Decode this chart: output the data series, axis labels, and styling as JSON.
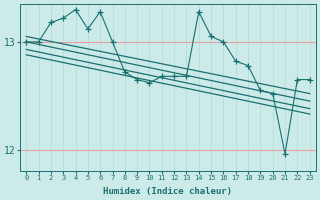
{
  "xlabel": "Humidex (Indice chaleur)",
  "x_ticks": [
    0,
    1,
    2,
    3,
    4,
    5,
    6,
    7,
    8,
    9,
    10,
    11,
    12,
    13,
    14,
    15,
    16,
    17,
    18,
    19,
    20,
    21,
    22,
    23
  ],
  "xlim": [
    -0.5,
    23.5
  ],
  "ylim": [
    11.8,
    13.35
  ],
  "yticks": [
    12,
    13
  ],
  "bg_color": "#cceae8",
  "line_color": "#1a7070",
  "grid_color": "#b8dedd",
  "hgrid_color": "#e8a0a0",
  "main_data_x": [
    0,
    1,
    2,
    3,
    4,
    5,
    6,
    7,
    8,
    9,
    10,
    11,
    12,
    13,
    14,
    15,
    16,
    17,
    18,
    19,
    20,
    21,
    22,
    23
  ],
  "main_data_y": [
    13.0,
    13.0,
    13.18,
    13.22,
    13.3,
    13.12,
    13.28,
    13.0,
    12.72,
    12.65,
    12.62,
    12.68,
    12.68,
    12.68,
    13.28,
    13.05,
    13.0,
    12.82,
    12.78,
    12.55,
    12.52,
    11.96,
    12.65,
    12.65
  ],
  "reg_lines": [
    {
      "x": [
        0,
        23
      ],
      "y": [
        13.05,
        12.52
      ]
    },
    {
      "x": [
        0,
        23
      ],
      "y": [
        13.0,
        12.45
      ]
    },
    {
      "x": [
        0,
        23
      ],
      "y": [
        12.93,
        12.38
      ]
    },
    {
      "x": [
        0,
        23
      ],
      "y": [
        12.88,
        12.33
      ]
    }
  ]
}
